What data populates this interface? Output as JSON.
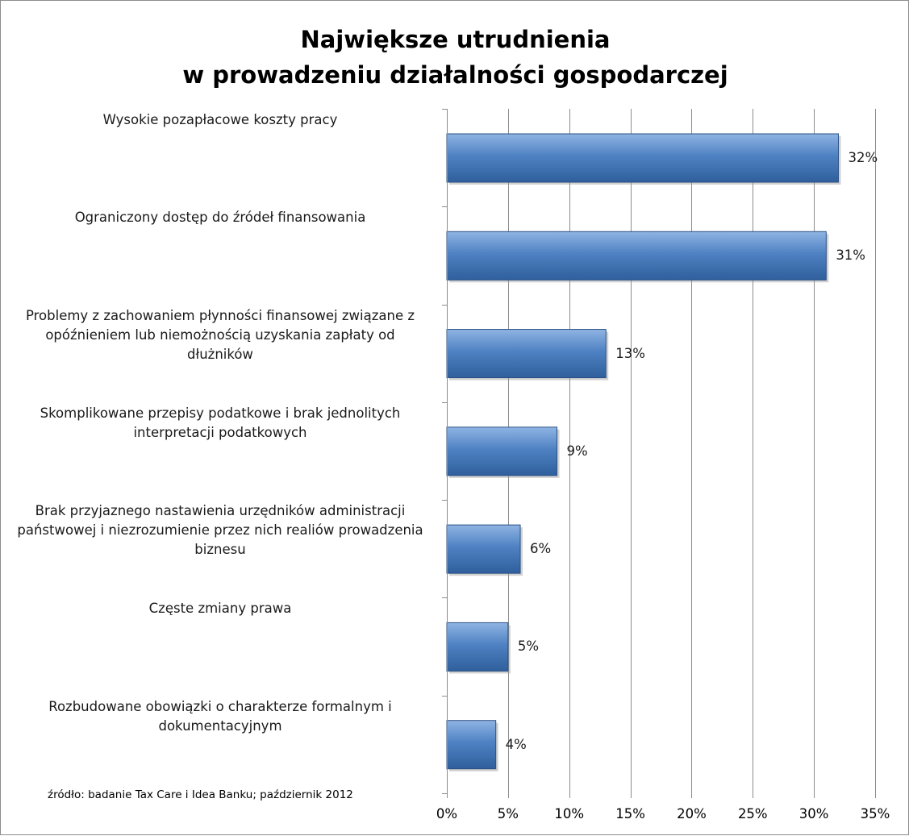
{
  "chart_data": {
    "type": "bar",
    "orientation": "horizontal",
    "title": [
      "Największe utrudnienia",
      "w prowadzeniu działalności gospodarczej"
    ],
    "categories": [
      "Wysokie pozapłacowe koszty pracy",
      "Ograniczony dostęp do źródeł finansowania",
      "Problemy z zachowaniem płynności finansowej związane z opóźnieniem lub niemożnością uzyskania zapłaty od dłużników",
      "Skomplikowane przepisy podatkowe i brak jednolitych interpretacji podatkowych",
      "Brak  przyjaznego nastawienia urzędników administracji państwowej i niezrozumienie przez nich realiów prowadzenia biznesu",
      "Częste zmiany prawa",
      "Rozbudowane obowiązki o charakterze formalnym i dokumentacyjnym"
    ],
    "category_lines": [
      [
        "Wysokie pozapłacowe koszty pracy"
      ],
      [
        "Ograniczony dostęp do źródeł finansowania"
      ],
      [
        "Problemy z zachowaniem płynności finansowej związane z",
        "opóźnieniem lub niemożnością uzyskania zapłaty od",
        "dłużników"
      ],
      [
        "Skomplikowane przepisy podatkowe i brak jednolitych",
        "interpretacji podatkowych"
      ],
      [
        "Brak  przyjaznego nastawienia urzędników administracji",
        "państwowej i niezrozumienie przez nich realiów prowadzenia",
        "biznesu"
      ],
      [
        "Częste zmiany prawa"
      ],
      [
        "Rozbudowane obowiązki o charakterze formalnym i",
        "dokumentacyjnym"
      ]
    ],
    "values": [
      32,
      31,
      13,
      9,
      6,
      5,
      4
    ],
    "value_labels": [
      "32%",
      "31%",
      "13%",
      "9%",
      "6%",
      "5%",
      "4%"
    ],
    "xlim": [
      0,
      35
    ],
    "x_ticks": [
      0,
      5,
      10,
      15,
      20,
      25,
      30,
      35
    ],
    "x_tick_labels": [
      "0%",
      "5%",
      "10%",
      "15%",
      "20%",
      "25%",
      "30%",
      "35%"
    ],
    "grid": "vertical",
    "legend": "none",
    "bar_color": "#4a7ebb",
    "gridline_color": "#8c8c8c"
  },
  "source_note": "źródło: badanie Tax Care i Idea Banku; październik 2012"
}
